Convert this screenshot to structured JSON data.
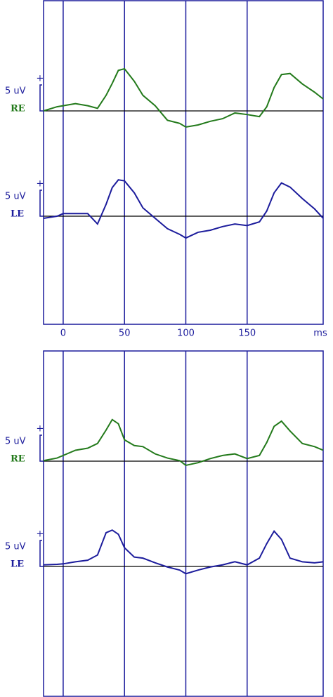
{
  "chart_data": [
    {
      "type": "line",
      "x": [
        -16,
        -5,
        0,
        10,
        20,
        28,
        35,
        40,
        45,
        50,
        58,
        65,
        75,
        85,
        95,
        100,
        110,
        120,
        130,
        140,
        150,
        160,
        166,
        172,
        178,
        185,
        195,
        205,
        212
      ],
      "xlim": [
        -16,
        212
      ],
      "xticks": [
        0,
        50,
        100,
        150
      ],
      "x_unit": "ms",
      "scale_bar": {
        "value": 5,
        "label": "5 uV"
      },
      "polarity_mark": "+",
      "series": [
        {
          "name": "RE",
          "color": "#237a1b",
          "values": [
            0,
            0.8,
            1,
            1.4,
            1,
            0.5,
            3,
            5.3,
            7.8,
            8.1,
            5.7,
            3,
            1,
            -1.8,
            -2.4,
            -3.1,
            -2.7,
            -2,
            -1.5,
            -0.4,
            -0.7,
            -1.1,
            0.8,
            4.5,
            7,
            7.2,
            5.2,
            3.6,
            2.3
          ]
        },
        {
          "name": "LE",
          "color": "#1c1c9c",
          "values": [
            -0.4,
            0,
            0.5,
            0.5,
            0.5,
            -1.5,
            2.3,
            5.5,
            7,
            6.8,
            4.5,
            1.6,
            -0.4,
            -2.4,
            -3.5,
            -4.2,
            -3.1,
            -2.7,
            -2,
            -1.5,
            -1.8,
            -1.1,
            1,
            4.5,
            6.4,
            5.6,
            3.4,
            1.4,
            -0.4
          ]
        }
      ]
    },
    {
      "type": "line",
      "x": [
        -16,
        -5,
        0,
        10,
        20,
        28,
        35,
        40,
        45,
        50,
        58,
        65,
        75,
        85,
        95,
        100,
        110,
        120,
        130,
        140,
        150,
        160,
        166,
        172,
        178,
        185,
        195,
        205,
        212
      ],
      "xlim": [
        -16,
        212
      ],
      "xticks": [
        0,
        50,
        100,
        150
      ],
      "x_unit": "ms",
      "scale_bar": {
        "value": 5,
        "label": "5 uV"
      },
      "polarity_mark": "+",
      "series": [
        {
          "name": "RE",
          "color": "#237a1b",
          "values": [
            0.1,
            0.6,
            1.1,
            2.1,
            2.5,
            3.4,
            6,
            8,
            7.2,
            4.1,
            3,
            2.8,
            1.4,
            0.6,
            0.1,
            -0.8,
            -0.3,
            0.5,
            1.1,
            1.4,
            0.5,
            1.1,
            3.6,
            6.7,
            7.7,
            5.8,
            3.4,
            2.8,
            2.1
          ]
        },
        {
          "name": "LE",
          "color": "#1c1c9c",
          "values": [
            0.3,
            0.4,
            0.5,
            0.9,
            1.2,
            2.2,
            6.5,
            7,
            6.2,
            3.6,
            1.8,
            1.6,
            0.7,
            -0.1,
            -0.7,
            -1.4,
            -0.7,
            -0.1,
            0.3,
            0.9,
            0.3,
            1.6,
            4.4,
            6.8,
            5.2,
            1.6,
            0.9,
            0.7,
            0.9
          ]
        }
      ]
    }
  ]
}
